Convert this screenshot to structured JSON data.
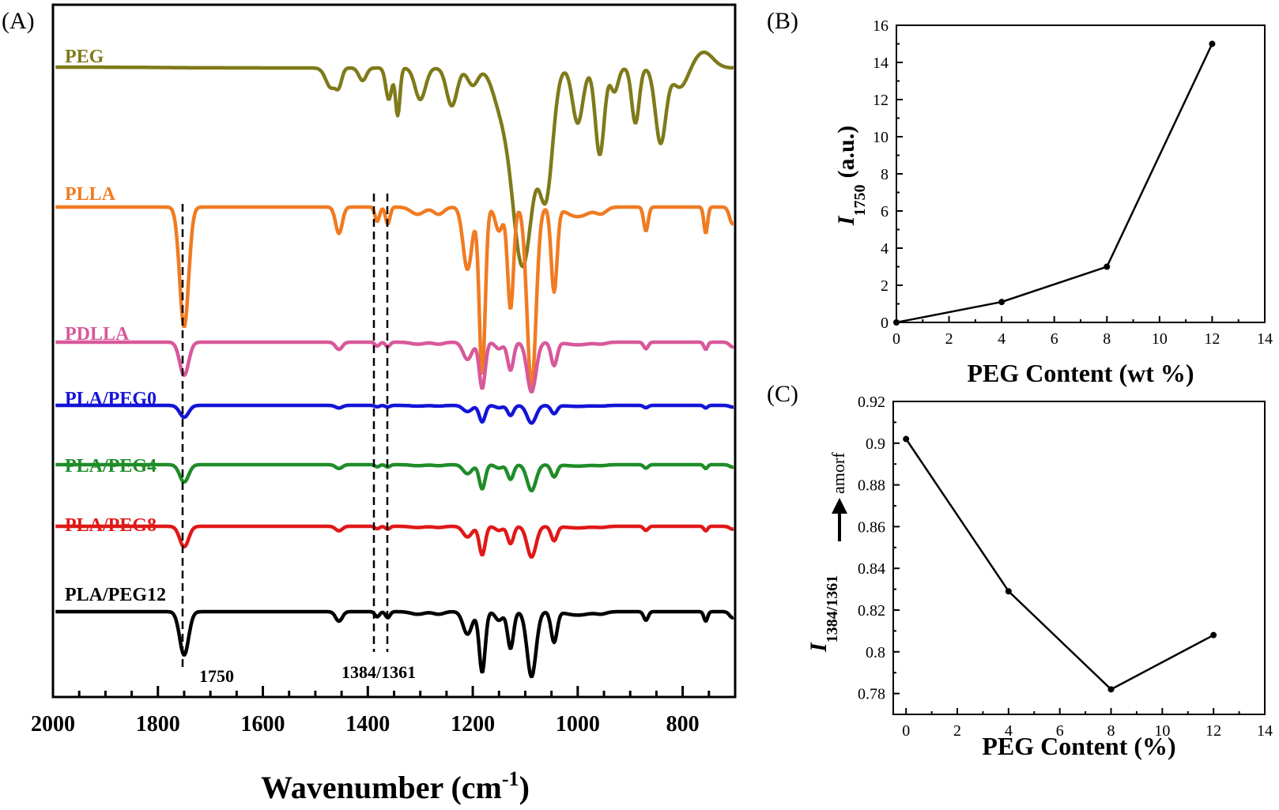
{
  "panels": [
    {
      "label": "(A)",
      "type": "line",
      "xlabel": "Wavenumber (cm",
      "xlabel_sup": "-1",
      "xlabel_end": ")",
      "xlim": [
        2000,
        700
      ],
      "x_ticks": [
        "2000",
        "1800",
        "1600",
        "1400",
        "1200",
        "1000",
        "800"
      ],
      "annotations": [
        "1750",
        "1384/1361"
      ],
      "series": [
        {
          "name": "PEG",
          "color": "#7f7a1a"
        },
        {
          "name": "PLLA",
          "color": "#f07b22"
        },
        {
          "name": "PDLLA",
          "color": "#d8589a"
        },
        {
          "name": "PLA/PEG0",
          "color": "#1414d8"
        },
        {
          "name": "PLA/PEG4",
          "color": "#1f8c28"
        },
        {
          "name": "PLA/PEG8",
          "color": "#e01818"
        },
        {
          "name": "PLA/PEG12",
          "color": "#000000"
        }
      ]
    },
    {
      "label": "(B)",
      "type": "line",
      "xlabel": "PEG Content (wt %)",
      "ylabel": "I",
      "ylabel_sub": "1750",
      "ylabel_unit": "(a.u.)",
      "xlim": [
        0,
        14
      ],
      "ylim": [
        0,
        16
      ],
      "x_ticks": [
        "0",
        "2",
        "4",
        "6",
        "8",
        "10",
        "12",
        "14"
      ],
      "y_ticks": [
        "0",
        "2",
        "4",
        "6",
        "8",
        "10",
        "12",
        "14",
        "16"
      ],
      "x": [
        0,
        4,
        8,
        12
      ],
      "y": [
        0,
        1.1,
        3.0,
        15.0
      ]
    },
    {
      "label": "(C)",
      "type": "line",
      "xlabel": "PEG Content (%)",
      "ylabel": "I",
      "ylabel_sub": "1384/1361",
      "ylabel_note": "amorf",
      "xlim": [
        -0.5,
        14
      ],
      "ylim": [
        0.77,
        0.92
      ],
      "x_ticks": [
        "0",
        "2",
        "4",
        "6",
        "8",
        "10",
        "12",
        "14"
      ],
      "y_ticks": [
        "0.78",
        "0.8",
        "0.82",
        "0.84",
        "0.86",
        "0.88",
        "0.9",
        "0.92"
      ],
      "x": [
        0,
        4,
        8,
        12
      ],
      "y": [
        0.902,
        0.829,
        0.782,
        0.808
      ]
    }
  ]
}
